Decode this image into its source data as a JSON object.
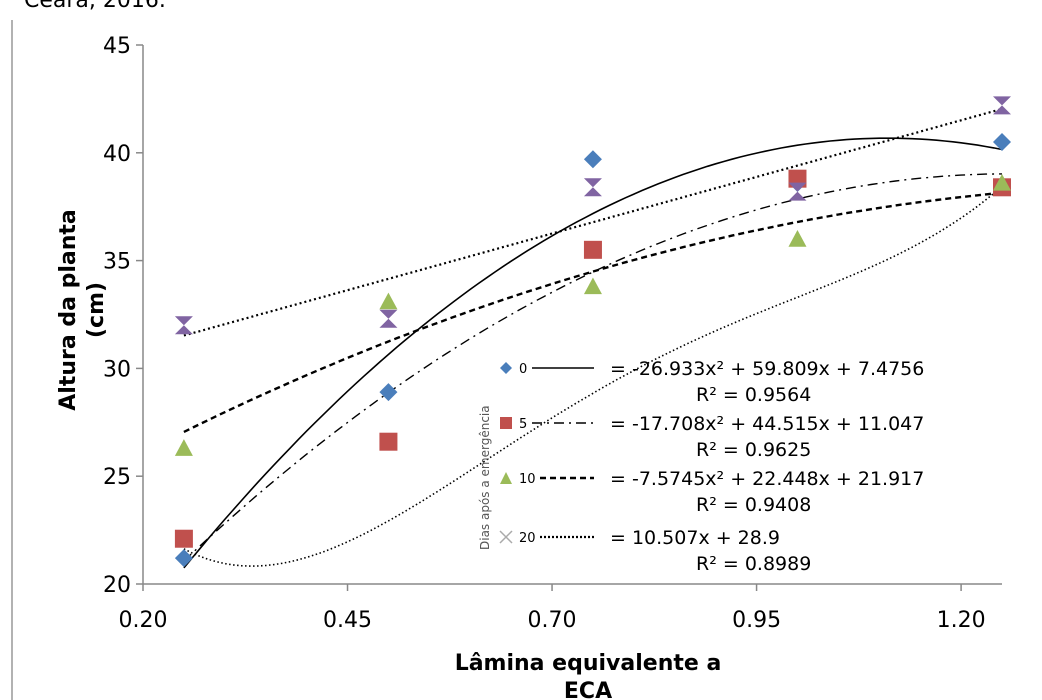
{
  "caption": "Ceará, 2016.",
  "chart_data": {
    "type": "scatter",
    "xlabel_lines": [
      "Lâmina equivalente a",
      "ECA"
    ],
    "ylabel_lines": [
      "Altura da planta",
      "(cm)"
    ],
    "xlim": [
      0.2,
      1.25
    ],
    "ylim": [
      20,
      45
    ],
    "xticks": [
      "0.20",
      "0.45",
      "0.70",
      "0.95",
      "1.20"
    ],
    "yticks": [
      "20",
      "25",
      "30",
      "35",
      "40",
      "45"
    ],
    "legend_title": "Dias após a emergência",
    "series": [
      {
        "name": "0",
        "marker": "diamond",
        "color": "#4a7ebb",
        "line": "solid",
        "x": [
          0.25,
          0.5,
          0.75,
          1.0,
          1.25
        ],
        "y": [
          21.2,
          28.9,
          39.7,
          38.6,
          40.5
        ],
        "equation": "= -26.933x² + 59.809x + 7.4756",
        "r2": "R² = 0.9564",
        "fit": {
          "kind": "poly",
          "coef": [
            -26.933,
            59.809,
            7.4756
          ]
        }
      },
      {
        "name": "5",
        "marker": "square",
        "color": "#c0504d",
        "line": "dashdot",
        "x": [
          0.25,
          0.5,
          0.75,
          1.0,
          1.25
        ],
        "y": [
          22.1,
          26.6,
          35.5,
          38.8,
          38.4
        ],
        "equation": "= -17.708x² + 44.515x + 11.047",
        "r2": "R² = 0.9625",
        "fit": {
          "kind": "poly",
          "coef": [
            -17.708,
            44.515,
            11.047
          ]
        }
      },
      {
        "name": "10",
        "marker": "triangle",
        "color": "#9bbb59",
        "line": "dashed",
        "x": [
          0.25,
          0.5,
          0.75,
          1.0,
          1.25
        ],
        "y": [
          26.3,
          33.1,
          33.8,
          36.0,
          38.6
        ],
        "equation": "= -7.5745x² + 22.448x + 21.917",
        "r2": "R² = 0.9408",
        "fit": {
          "kind": "poly",
          "coef": [
            -7.5745,
            22.448,
            21.917
          ]
        }
      },
      {
        "name": "20",
        "marker": "hourglass",
        "color": "#8064a2",
        "line": "dotted",
        "x": [
          0.25,
          0.5,
          0.75,
          1.0,
          1.25
        ],
        "y": [
          32.0,
          32.3,
          38.4,
          38.2,
          42.2
        ],
        "equation": "= 10.507x + 28.9",
        "r2": "R² = 0.8989",
        "fit": {
          "kind": "poly",
          "coef": [
            0,
            10.507,
            28.9
          ]
        }
      },
      {
        "name": "",
        "marker": "none",
        "color": "#000000",
        "line": "finedot",
        "fit": {
          "kind": "poly4",
          "coef": [
            88.0,
            -285.0,
            327.0,
            -136.0,
            39.3
          ]
        },
        "equation": "",
        "r2": ""
      }
    ]
  }
}
